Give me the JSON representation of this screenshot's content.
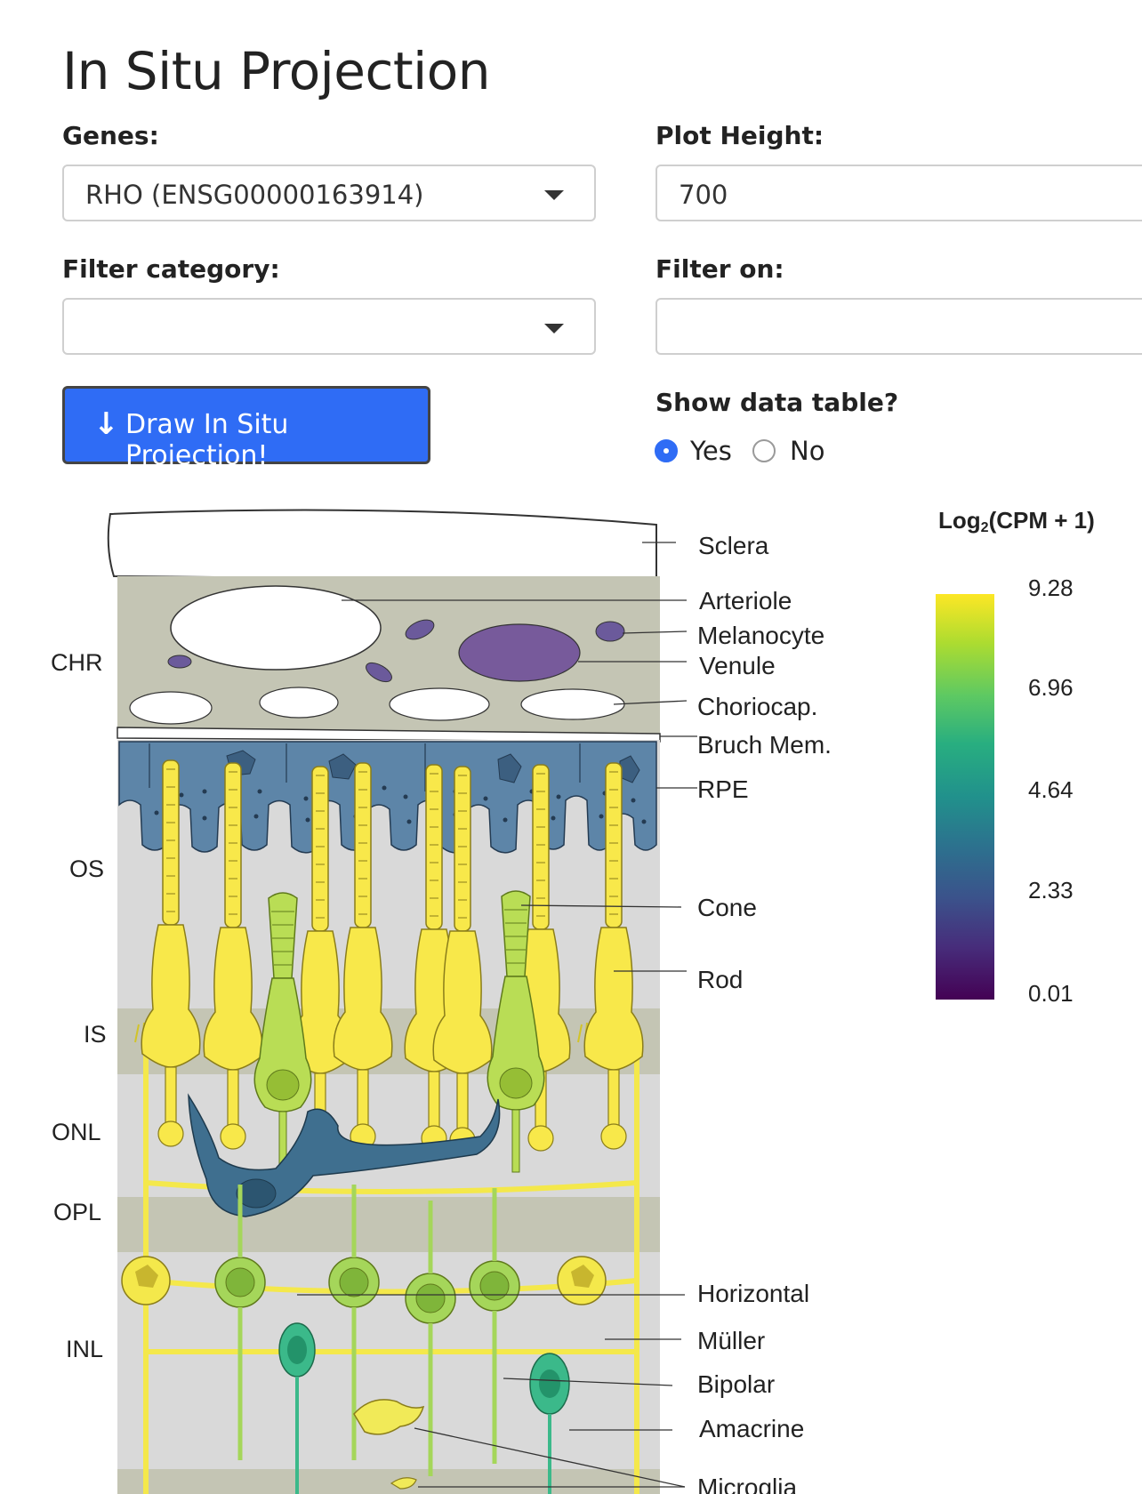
{
  "page": {
    "title": "In Situ Projection"
  },
  "form": {
    "genes_label": "Genes:",
    "genes_value": "RHO (ENSG00000163914)",
    "plot_height_label": "Plot Height:",
    "plot_height_value": "700",
    "filter_category_label": "Filter category:",
    "filter_category_value": "",
    "filter_on_label": "Filter on:",
    "filter_on_value": "",
    "draw_button_label": "Draw In Situ Projection!",
    "draw_button_icon": "arrow-down-icon",
    "show_table_label": "Show data table?",
    "show_table_options": [
      {
        "label": "Yes",
        "selected": true
      },
      {
        "label": "No",
        "selected": false
      }
    ]
  },
  "figure": {
    "layer_labels": [
      "CHR",
      "OS",
      "IS",
      "ONL",
      "OPL",
      "INL"
    ],
    "cell_labels": [
      "Sclera",
      "Arteriole",
      "Melanocyte",
      "Venule",
      "Choriocap.",
      "Bruch Mem.",
      "RPE",
      "Cone",
      "Rod",
      "Horizontal",
      "Müller",
      "Bipolar",
      "Amacrine",
      "Microglia"
    ],
    "legend_title_prefix": "Log",
    "legend_title_sub": "2",
    "legend_title_suffix": "(CPM + 1)",
    "legend_ticks": [
      "9.28",
      "6.96",
      "4.64",
      "2.33",
      "0.01"
    ],
    "colors": {
      "button": "#2f6cf5",
      "rod": "#f8e84a",
      "cone": "#b9dd55",
      "rpe": "#5d85a8",
      "horizontal": "#3f6f8f",
      "choroid": "#c4c5b4"
    }
  }
}
